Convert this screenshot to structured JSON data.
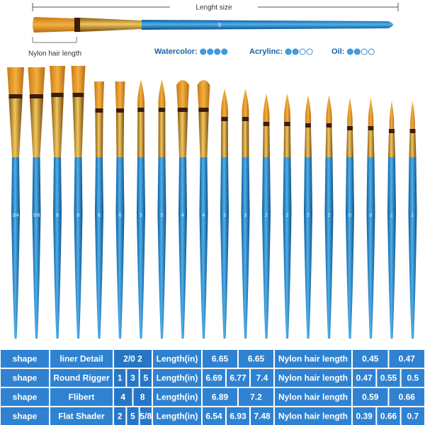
{
  "header": {
    "length_label": "Lenght size",
    "top_brush_size": "8",
    "hair_label": "Nylon hair length",
    "ratings": [
      {
        "label": "Watercolor:",
        "filled": 4,
        "total": 4
      },
      {
        "label": "Acrylinc:",
        "filled": 2,
        "total": 4
      },
      {
        "label": "Oil:",
        "filled": 2,
        "total": 4
      }
    ]
  },
  "brushes": [
    "3/4",
    "5/8",
    "8",
    "8",
    "6",
    "6",
    "5",
    "5",
    "4",
    "4",
    "3",
    "3",
    "2",
    "2",
    "2",
    "2",
    "0",
    "0",
    "1",
    "1"
  ],
  "table": {
    "rows": [
      {
        "label": "shape",
        "name": "liner Detail",
        "sizes": [
          "2/0 2"
        ],
        "length_label": "Length(in)",
        "lengths": [
          "6.65",
          "6.65"
        ],
        "hair_label": "Nylon hair length",
        "hairs": [
          "0.45",
          "0.47"
        ]
      },
      {
        "label": "shape",
        "name": "Round Rigger",
        "sizes": [
          "1",
          "3",
          "5"
        ],
        "length_label": "Length(in)",
        "lengths": [
          "6.69",
          "6.77",
          "7.4"
        ],
        "hair_label": "Nylon hair length",
        "hairs": [
          "0.47",
          "0.55",
          "0.5"
        ]
      },
      {
        "label": "shape",
        "name": "Flibert",
        "sizes": [
          "4",
          "8"
        ],
        "length_label": "Length(in)",
        "lengths": [
          "6.89",
          "7.2"
        ],
        "hair_label": "Nylon hair length",
        "hairs": [
          "0.59",
          "0.66"
        ]
      },
      {
        "label": "shape",
        "name": "Flat Shader",
        "sizes": [
          "2",
          "5",
          "5/8"
        ],
        "length_label": "Length(in)",
        "lengths": [
          "6.54",
          "6.93",
          "7.48"
        ],
        "hair_label": "Nylon hair length",
        "hairs": [
          "0.39",
          "0.66",
          "0.7"
        ]
      }
    ]
  }
}
